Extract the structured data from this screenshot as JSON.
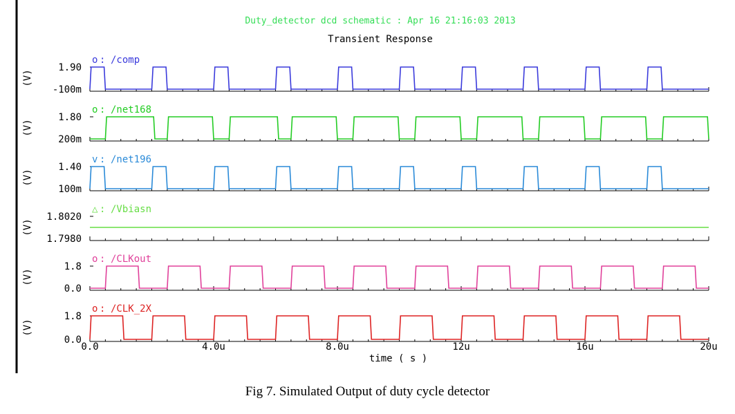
{
  "window_title": "Duty_detector dcd schematic : Apr 16 21:16:03 2013",
  "chart_data": {
    "type": "line",
    "title": "Transient Response",
    "xlabel": "time ( s )",
    "x_ticks": [
      "0.0",
      "4.0u",
      "8.0u",
      "12u",
      "16u",
      "20u"
    ],
    "xlim": [
      0,
      20
    ],
    "x_unit": "us",
    "series": [
      {
        "name": "/comp",
        "marker": "o",
        "color": "#3a3adc",
        "ylabel": "(V)",
        "y_ticks": [
          "1.90",
          "-100m"
        ],
        "ylim": [
          -0.1,
          1.9
        ],
        "high": 1.9,
        "low": -0.1,
        "pulses": [
          [
            0.0,
            0.5
          ],
          [
            2.0,
            2.5
          ],
          [
            4.0,
            4.5
          ],
          [
            6.0,
            6.5
          ],
          [
            8.0,
            8.5
          ],
          [
            10.0,
            10.5
          ],
          [
            12.0,
            12.5
          ],
          [
            14.0,
            14.5
          ],
          [
            16.0,
            16.5
          ],
          [
            18.0,
            18.5
          ]
        ]
      },
      {
        "name": "/net168",
        "marker": "o",
        "color": "#22cc22",
        "ylabel": "(V)",
        "y_ticks": [
          "1.80",
          "200m"
        ],
        "ylim": [
          0.2,
          1.8
        ],
        "high": 1.8,
        "low": 0.2,
        "pulses": [
          [
            0.5,
            2.1
          ],
          [
            2.5,
            4.0
          ],
          [
            4.5,
            6.1
          ],
          [
            6.5,
            8.0
          ],
          [
            8.5,
            10.0
          ],
          [
            10.5,
            12.0
          ],
          [
            12.5,
            14.0
          ],
          [
            14.5,
            16.0
          ],
          [
            16.5,
            18.0
          ],
          [
            18.5,
            20.0
          ]
        ]
      },
      {
        "name": "/net196",
        "marker": "v",
        "color": "#2a8ad8",
        "ylabel": "(V)",
        "y_ticks": [
          "1.40",
          "100m"
        ],
        "ylim": [
          0.1,
          1.4
        ],
        "high": 1.4,
        "low": 0.1,
        "pulses": [
          [
            0.0,
            0.5
          ],
          [
            2.0,
            2.5
          ],
          [
            4.0,
            4.5
          ],
          [
            6.0,
            6.5
          ],
          [
            8.0,
            8.5
          ],
          [
            10.0,
            10.5
          ],
          [
            12.0,
            12.5
          ],
          [
            14.0,
            14.5
          ],
          [
            16.0,
            16.5
          ],
          [
            18.0,
            18.5
          ]
        ]
      },
      {
        "name": "/Vbiasn",
        "marker": "△",
        "color": "#66dd44",
        "ylabel": "(V)",
        "y_ticks": [
          "1.8020",
          "1.7980"
        ],
        "ylim": [
          1.798,
          1.802
        ],
        "constant": 1.8
      },
      {
        "name": "/CLKout",
        "marker": "o",
        "color": "#e0409a",
        "ylabel": "(V)",
        "y_ticks": [
          "1.8",
          "0.0"
        ],
        "ylim": [
          0.0,
          1.8
        ],
        "high": 1.8,
        "low": 0.0,
        "pulses": [
          [
            0.5,
            1.6
          ],
          [
            2.5,
            3.6
          ],
          [
            4.5,
            5.6
          ],
          [
            6.5,
            7.6
          ],
          [
            8.5,
            9.6
          ],
          [
            10.5,
            11.6
          ],
          [
            12.5,
            13.6
          ],
          [
            14.5,
            15.6
          ],
          [
            16.5,
            17.6
          ],
          [
            18.5,
            19.6
          ]
        ]
      },
      {
        "name": "/CLK_2X",
        "marker": "o",
        "color": "#dd2222",
        "ylabel": "(V)",
        "y_ticks": [
          "1.8",
          "0.0"
        ],
        "ylim": [
          0.0,
          1.8
        ],
        "high": 1.8,
        "low": 0.0,
        "pulses": [
          [
            0.0,
            1.1
          ],
          [
            2.0,
            3.1
          ],
          [
            4.0,
            5.1
          ],
          [
            6.0,
            7.1
          ],
          [
            8.0,
            9.1
          ],
          [
            10.0,
            11.1
          ],
          [
            12.0,
            13.1
          ],
          [
            14.0,
            15.1
          ],
          [
            16.0,
            17.1
          ],
          [
            18.0,
            19.1
          ]
        ]
      }
    ]
  },
  "caption": "Fig 7. Simulated Output of duty cycle detector"
}
